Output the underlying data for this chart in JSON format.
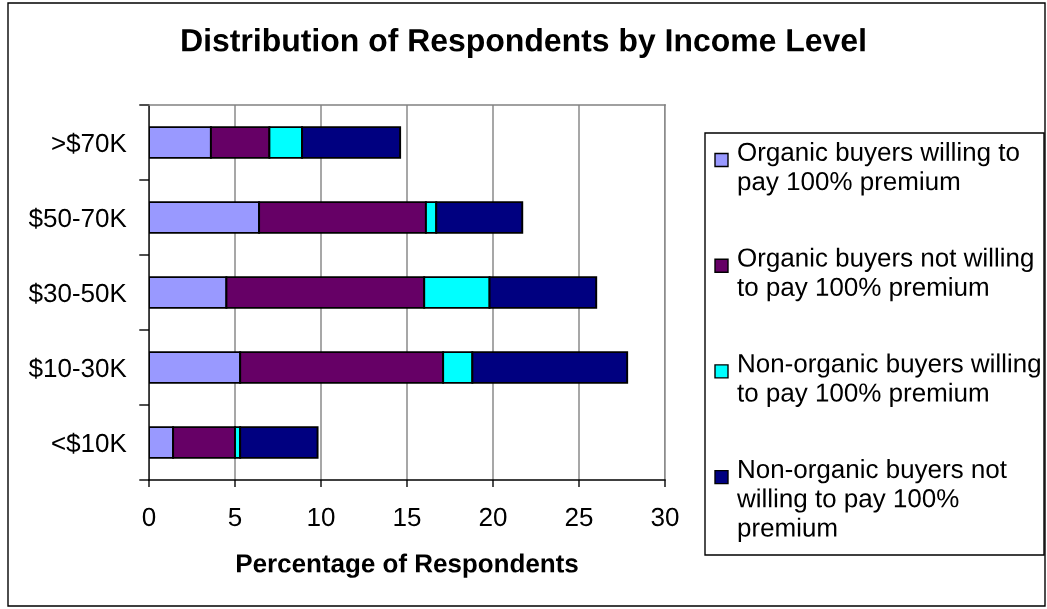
{
  "chart_data": {
    "type": "bar",
    "orientation": "horizontal",
    "stacked": true,
    "title": "Distribution of Respondents by Income Level",
    "xlabel": "Percentage of Respondents",
    "categories": [
      ">$70K",
      "$50-70K",
      "$30-50K",
      "$10-30K",
      "<$10K"
    ],
    "series": [
      {
        "name": "Organic buyers willing to pay 100% premium",
        "color": "#9999ff",
        "values": [
          3.6,
          6.4,
          4.5,
          5.3,
          1.4
        ]
      },
      {
        "name": "Organic buyers not willing to pay 100% premium",
        "color": "#660066",
        "values": [
          3.4,
          9.7,
          11.5,
          11.8,
          3.6
        ]
      },
      {
        "name": "Non-organic buyers willing to pay 100% premium",
        "color": "#00ffff",
        "values": [
          1.9,
          0.6,
          3.8,
          1.7,
          0.3
        ]
      },
      {
        "name": "Non-organic buyers not willing to pay 100% premium",
        "color": "#000080",
        "values": [
          5.7,
          5.0,
          6.2,
          9.0,
          4.5
        ]
      }
    ],
    "xlim": [
      0,
      30
    ],
    "xticks": [
      0,
      5,
      10,
      15,
      20,
      25,
      30
    ],
    "grid": "x",
    "legend": "right"
  }
}
